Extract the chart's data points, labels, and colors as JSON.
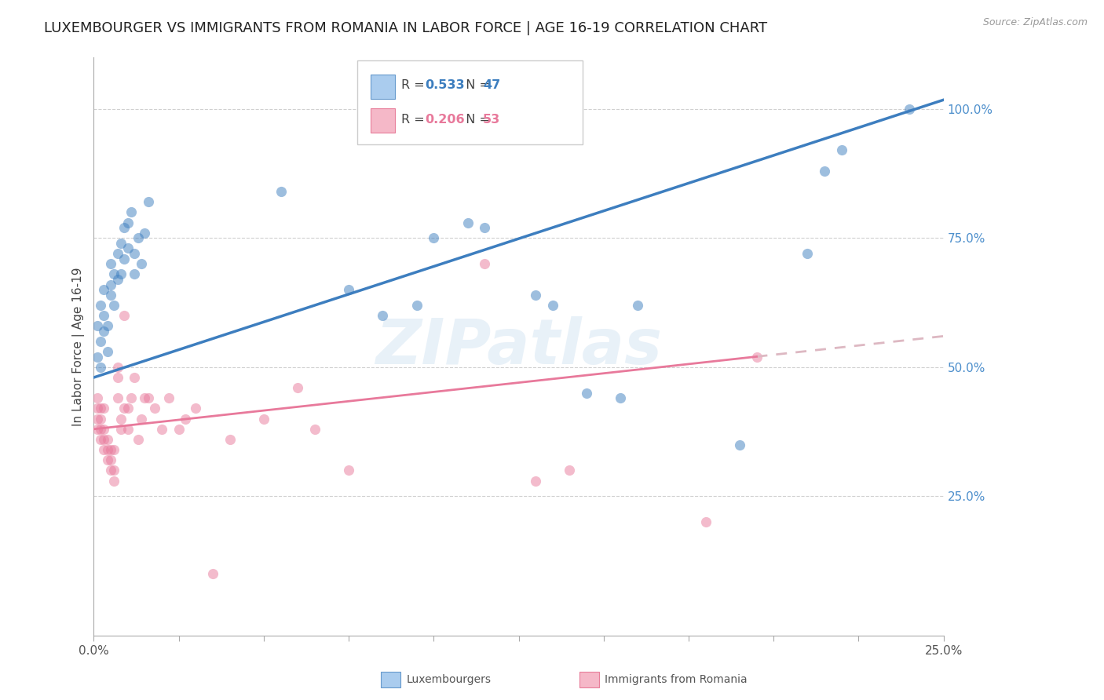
{
  "title": "LUXEMBOURGER VS IMMIGRANTS FROM ROMANIA IN LABOR FORCE | AGE 16-19 CORRELATION CHART",
  "source": "Source: ZipAtlas.com",
  "ylabel": "In Labor Force | Age 16-19",
  "xlim": [
    0.0,
    0.25
  ],
  "ylim": [
    -0.02,
    1.1
  ],
  "yticks_right": [
    0.25,
    0.5,
    0.75,
    1.0
  ],
  "ytick_labels_right": [
    "25.0%",
    "50.0%",
    "75.0%",
    "100.0%"
  ],
  "xtick_vals": [
    0.0,
    0.025,
    0.05,
    0.075,
    0.1,
    0.125,
    0.15,
    0.175,
    0.2,
    0.225,
    0.25
  ],
  "xtick_major": [
    0.0,
    0.25
  ],
  "xtick_major_labels": [
    "0.0%",
    "25.0%"
  ],
  "blue_R": 0.533,
  "blue_N": 47,
  "pink_R": 0.206,
  "pink_N": 53,
  "legend_label_blue": "Luxembourgers",
  "legend_label_pink": "Immigrants from Romania",
  "watermark": "ZIPatlas",
  "blue_scatter_x": [
    0.001,
    0.001,
    0.002,
    0.002,
    0.002,
    0.003,
    0.003,
    0.003,
    0.004,
    0.004,
    0.005,
    0.005,
    0.005,
    0.006,
    0.006,
    0.007,
    0.007,
    0.008,
    0.008,
    0.009,
    0.009,
    0.01,
    0.01,
    0.011,
    0.012,
    0.012,
    0.013,
    0.014,
    0.015,
    0.016,
    0.055,
    0.075,
    0.085,
    0.095,
    0.1,
    0.11,
    0.115,
    0.13,
    0.135,
    0.145,
    0.155,
    0.16,
    0.19,
    0.21,
    0.215,
    0.22,
    0.24
  ],
  "blue_scatter_y": [
    0.52,
    0.58,
    0.55,
    0.5,
    0.62,
    0.6,
    0.57,
    0.65,
    0.58,
    0.53,
    0.64,
    0.7,
    0.66,
    0.68,
    0.62,
    0.72,
    0.67,
    0.74,
    0.68,
    0.77,
    0.71,
    0.78,
    0.73,
    0.8,
    0.72,
    0.68,
    0.75,
    0.7,
    0.76,
    0.82,
    0.84,
    0.65,
    0.6,
    0.62,
    0.75,
    0.78,
    0.77,
    0.64,
    0.62,
    0.45,
    0.44,
    0.62,
    0.35,
    0.72,
    0.88,
    0.92,
    1.0
  ],
  "pink_scatter_x": [
    0.001,
    0.001,
    0.001,
    0.001,
    0.002,
    0.002,
    0.002,
    0.002,
    0.003,
    0.003,
    0.003,
    0.003,
    0.004,
    0.004,
    0.004,
    0.005,
    0.005,
    0.005,
    0.006,
    0.006,
    0.006,
    0.007,
    0.007,
    0.007,
    0.008,
    0.008,
    0.009,
    0.009,
    0.01,
    0.01,
    0.011,
    0.012,
    0.013,
    0.014,
    0.015,
    0.016,
    0.018,
    0.02,
    0.022,
    0.025,
    0.027,
    0.03,
    0.035,
    0.04,
    0.05,
    0.06,
    0.065,
    0.075,
    0.115,
    0.13,
    0.14,
    0.18,
    0.195
  ],
  "pink_scatter_y": [
    0.38,
    0.4,
    0.42,
    0.44,
    0.36,
    0.38,
    0.4,
    0.42,
    0.34,
    0.36,
    0.38,
    0.42,
    0.32,
    0.34,
    0.36,
    0.3,
    0.32,
    0.34,
    0.28,
    0.3,
    0.34,
    0.48,
    0.5,
    0.44,
    0.38,
    0.4,
    0.42,
    0.6,
    0.38,
    0.42,
    0.44,
    0.48,
    0.36,
    0.4,
    0.44,
    0.44,
    0.42,
    0.38,
    0.44,
    0.38,
    0.4,
    0.42,
    0.1,
    0.36,
    0.4,
    0.46,
    0.38,
    0.3,
    0.7,
    0.28,
    0.3,
    0.2,
    0.52
  ],
  "blue_line_color": "#3d7ebf",
  "pink_line_color": "#e8799b",
  "pink_dash_color": "#ddb8c2",
  "grid_color": "#d0d0d0",
  "tick_color_right": "#4d8fcc",
  "background_color": "#ffffff",
  "scatter_alpha": 0.5,
  "scatter_size": 90,
  "title_fontsize": 13,
  "axis_label_fontsize": 11,
  "tick_fontsize": 10,
  "blue_line_intercept": 0.48,
  "blue_line_slope": 2.15,
  "pink_line_intercept": 0.38,
  "pink_line_slope": 0.72
}
